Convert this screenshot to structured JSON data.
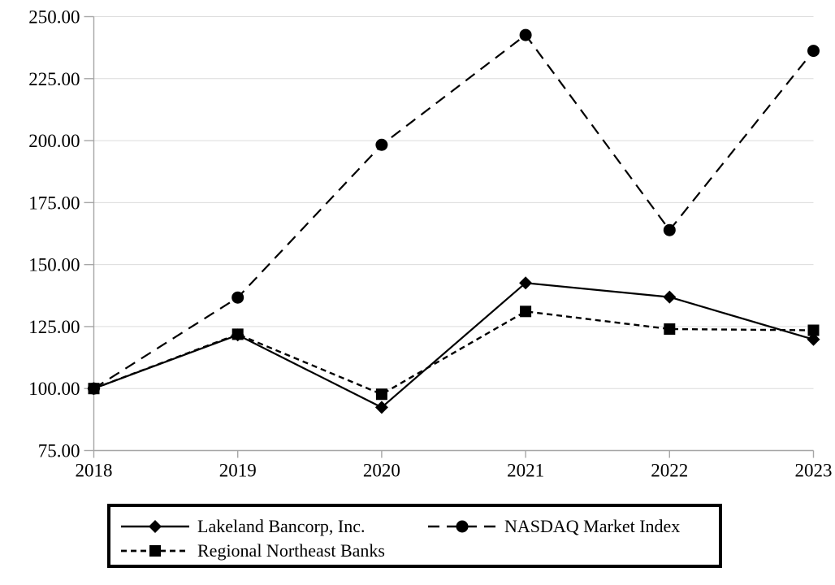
{
  "page": {
    "background": "#ffffff"
  },
  "chart_data": {
    "type": "line",
    "title": "",
    "xlabel": "",
    "ylabel": "",
    "x_categories": [
      "2018",
      "2019",
      "2020",
      "2021",
      "2022",
      "2023"
    ],
    "y_axis": {
      "min": 75,
      "max": 250,
      "tick_values": [
        75,
        100,
        125,
        150,
        175,
        200,
        225,
        250
      ],
      "tick_labels": [
        "75.00",
        "100.00",
        "125.00",
        "150.00",
        "175.00",
        "200.00",
        "225.00",
        "250.00"
      ]
    },
    "grid": true,
    "legend_position": "bottom",
    "series": [
      {
        "name": "Lakeland Bancorp, Inc.",
        "marker": "diamond",
        "line_style": "solid",
        "color": "#000000",
        "values": [
          100.0,
          121.6,
          92.4,
          142.6,
          136.9,
          119.8
        ]
      },
      {
        "name": "NASDAQ Market Index",
        "marker": "circle",
        "line_style": "long-dash",
        "color": "#000000",
        "values": [
          100.0,
          136.7,
          198.3,
          242.6,
          163.9,
          236.2
        ]
      },
      {
        "name": "Regional Northeast Banks",
        "marker": "square",
        "line_style": "short-dash",
        "color": "#000000",
        "values": [
          100.0,
          121.9,
          97.7,
          131.1,
          124.0,
          123.5
        ]
      }
    ],
    "colors": {
      "series": "#000000",
      "gridline": "#dcdcdc",
      "axis": "#a6a6a6",
      "legend_border": "#000000"
    }
  }
}
